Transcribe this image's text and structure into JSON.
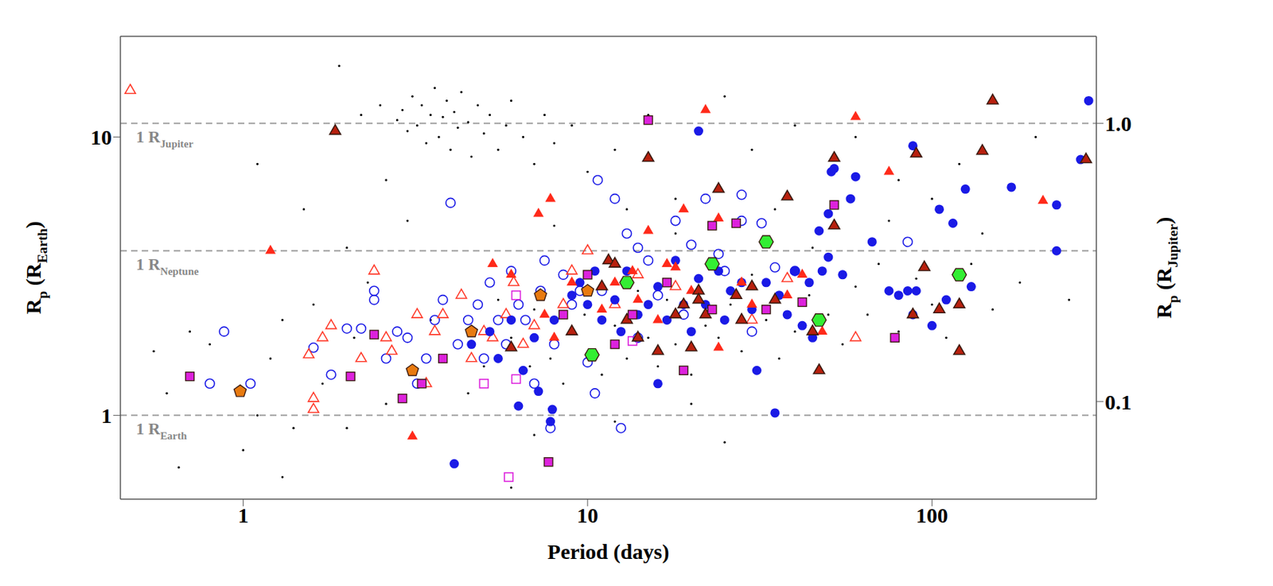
{
  "chart_data": {
    "type": "scatter",
    "log": true,
    "grid": false,
    "x_label": "Period (days)",
    "y_label": [
      "R",
      {
        "sub": "p"
      },
      " (R",
      {
        "sub": "Earth"
      },
      ")"
    ],
    "y2_label": [
      "R",
      {
        "sub": "p"
      },
      " (R",
      {
        "sub": "Jupiter"
      },
      ")"
    ],
    "xlim": [
      0.44,
      300
    ],
    "xticks": [
      1,
      10,
      100
    ],
    "ylim": [
      0.5,
      23
    ],
    "yticks": [
      1,
      10
    ],
    "y2lim": [
      0.0446,
      2.054
    ],
    "y2ticks": [
      0.1,
      {
        "value": 1,
        "label": "1.0"
      }
    ],
    "reference_lines": [
      {
        "y": 11.2,
        "label": [
          "1 R",
          {
            "sub": "Jupiter"
          }
        ],
        "line_style": "dashed"
      },
      {
        "y": 3.9,
        "label": [
          "1 R",
          {
            "sub": "Neptune"
          }
        ],
        "line_style": "dashed"
      },
      {
        "y": 1,
        "label": [
          "1 R",
          {
            "sub": "Earth"
          }
        ],
        "line_style": "dashed"
      }
    ],
    "series": [
      {
        "color": "#000000",
        "marker": "dot",
        "x": [
          0.6,
          0.65,
          0.7,
          0.8,
          1.0,
          1.1,
          1.2,
          1.3,
          1.4,
          1.5,
          1.6,
          1.7,
          1.9,
          2.0,
          2.1,
          2.2,
          2.3,
          2.5,
          2.6,
          2.8,
          2.9,
          3.0,
          3.1,
          3.2,
          3.3,
          3.4,
          3.5,
          3.5,
          3.6,
          3.7,
          3.8,
          3.9,
          4.0,
          4.1,
          4.2,
          4.3,
          4.5,
          4.6,
          4.8,
          5.0,
          5.2,
          5.5,
          5.8,
          6.0,
          6.5,
          7.0,
          7.5,
          8,
          9,
          10,
          12,
          15,
          18,
          25,
          30,
          40,
          60,
          80,
          120,
          200,
          4.5,
          5,
          5.5,
          6,
          6.8,
          7,
          7.8,
          8.5,
          9,
          9.8,
          10.5,
          11,
          12,
          13,
          14,
          15,
          16,
          17,
          18,
          20,
          22,
          24,
          26,
          28,
          30,
          33,
          36,
          40,
          44,
          50,
          55,
          60,
          65,
          70,
          80,
          90,
          100,
          110,
          130,
          150,
          180,
          250,
          7,
          12,
          20,
          1.3,
          25,
          6,
          18,
          35,
          45,
          75,
          100,
          140,
          2.0,
          0.55,
          3.0,
          2.6,
          1.1,
          8,
          13
        ],
        "values": [
          1.2,
          0.65,
          2.0,
          1.8,
          0.75,
          1.0,
          1.6,
          2.2,
          0.9,
          5.5,
          2.5,
          1.3,
          18,
          0.9,
          1.9,
          12,
          3.0,
          13,
          1.1,
          11.5,
          12.5,
          10.5,
          14,
          11,
          13,
          9.5,
          12,
          2.2,
          15,
          10,
          11.8,
          13.5,
          9,
          12.3,
          10.8,
          14.5,
          11.3,
          8.5,
          13,
          10.3,
          12,
          9,
          11,
          13.5,
          10,
          8,
          12,
          9.5,
          11,
          7.5,
          9,
          12,
          6,
          14,
          9,
          11,
          10,
          7,
          8,
          10,
          1.2,
          1.5,
          2.6,
          1.9,
          1.5,
          2.4,
          1.6,
          1.3,
          2.0,
          2.3,
          1.7,
          1.4,
          2.1,
          1.6,
          2.8,
          1.9,
          1.5,
          2.6,
          1.8,
          1.4,
          2.1,
          1.9,
          2.5,
          1.7,
          3.2,
          2.2,
          1.6,
          2.0,
          2.7,
          2.3,
          1.8,
          2.9,
          2.3,
          3.5,
          2.0,
          3.1,
          2.5,
          1.9,
          3.5,
          2.4,
          3.0,
          2.6,
          0.85,
          0.95,
          1.1,
          0.6,
          0.8,
          0.55,
          4.5,
          5.5,
          4.0,
          5.0,
          6.0,
          4.5,
          4.0,
          1.7,
          5.0,
          7.0,
          8.0,
          4.8,
          5.5
        ]
      },
      {
        "color": "#1a1ae6",
        "marker": "open_circle",
        "x": [
          0.8,
          0.88,
          1.05,
          1.6,
          1.8,
          2.0,
          2.2,
          2.4,
          2.4,
          2.6,
          2.8,
          3.0,
          3.2,
          3.4,
          3.6,
          3.8,
          4,
          4.2,
          4.5,
          4.8,
          5.0,
          5.2,
          5.5,
          5.8,
          6,
          6.3,
          6.6,
          7,
          7.3,
          7.5,
          7.8,
          8,
          8.5,
          9,
          9.5,
          10,
          10.5,
          10.7,
          11,
          12,
          12.5,
          13,
          14,
          15,
          16,
          18,
          20,
          22,
          24,
          25,
          28,
          28,
          30,
          32,
          35,
          40,
          85,
          14,
          19
        ],
        "values": [
          1.3,
          2.0,
          1.3,
          1.75,
          1.4,
          2.05,
          2.05,
          2.6,
          2.8,
          1.6,
          2.0,
          1.9,
          1.3,
          1.6,
          2.2,
          2.6,
          5.8,
          1.8,
          2.2,
          2.5,
          1.6,
          3.0,
          2.2,
          1.8,
          3.3,
          2.5,
          2.2,
          1.3,
          2.8,
          3.6,
          0.9,
          1.8,
          3.2,
          2.5,
          2.8,
          1.55,
          1.2,
          7.0,
          2.8,
          6.0,
          0.9,
          4.5,
          4.0,
          3.6,
          2.7,
          5.0,
          4.1,
          6.0,
          3.8,
          3.3,
          5.0,
          6.2,
          2.0,
          4.9,
          3.4,
          3.3,
          4.2,
          1.9,
          2.3
        ]
      },
      {
        "color": "#ff3a2a",
        "marker": "open_triangle",
        "x": [
          0.47,
          1.6,
          1.6,
          1.55,
          1.7,
          1.8,
          2.2,
          2.4,
          2.6,
          2.7,
          3.2,
          3.4,
          3.6,
          3.8,
          4.3,
          4.6,
          5,
          5.3,
          5.8,
          6.1,
          6.5,
          7,
          8.5,
          9,
          10,
          12,
          14,
          18,
          38,
          60,
          30
        ],
        "values": [
          14.7,
          1.05,
          1.15,
          1.65,
          1.9,
          2.1,
          1.6,
          3.3,
          1.9,
          1.7,
          2.3,
          1.3,
          2.0,
          2.3,
          2.7,
          1.6,
          2.0,
          1.9,
          2.3,
          3.0,
          1.8,
          2.1,
          2.5,
          3.3,
          3.9,
          2.5,
          3.2,
          2.9,
          3.1,
          1.9,
          2.2
        ]
      },
      {
        "color": "#dd22dd",
        "marker": "open_square",
        "x": [
          5,
          5.9,
          6.2,
          6.2,
          13.5
        ],
        "values": [
          1.3,
          0.6,
          1.35,
          2.7,
          1.85
        ]
      },
      {
        "color": "#1a1ae6",
        "marker": "circle",
        "x": [
          4.1,
          6.3,
          7.2,
          7.8,
          7.9,
          6.5,
          5.5,
          4.6,
          5.2,
          6,
          7,
          8,
          9,
          9.5,
          10,
          10.5,
          11,
          12,
          12.5,
          13,
          14,
          15,
          16,
          17,
          18,
          19,
          20,
          21,
          21,
          22,
          24,
          25,
          26,
          28,
          30,
          31,
          33,
          35,
          36,
          38,
          40,
          42,
          44,
          45,
          47,
          48,
          50,
          50,
          51,
          52,
          55,
          58,
          60,
          67,
          75,
          80,
          85,
          88,
          90,
          88,
          100,
          105,
          110,
          115,
          125,
          130,
          170,
          230,
          230,
          270,
          285,
          16
        ],
        "values": [
          0.67,
          1.08,
          1.22,
          0.95,
          1.05,
          1.45,
          1.6,
          1.8,
          2.0,
          2.2,
          1.9,
          2.2,
          2.7,
          3.0,
          2.5,
          3.3,
          2.2,
          2.6,
          2.0,
          3.3,
          2.3,
          2.5,
          2.9,
          2.2,
          3.6,
          2.5,
          2.0,
          3.1,
          10.5,
          2.5,
          3.3,
          2.2,
          2.8,
          3.0,
          2.4,
          1.45,
          3.0,
          1.02,
          2.7,
          2.3,
          3.3,
          2.1,
          3.0,
          1.9,
          4.6,
          3.3,
          3.7,
          5.3,
          7.5,
          7.7,
          3.2,
          6.0,
          7.2,
          4.2,
          2.8,
          2.7,
          2.8,
          2.3,
          2.8,
          9.3,
          2.1,
          5.5,
          2.6,
          4.9,
          6.5,
          2.9,
          6.6,
          3.9,
          5.7,
          8.3,
          13.5,
          1.3
        ]
      },
      {
        "color": "#ff2a1a",
        "marker": "triangle",
        "x": [
          1.2,
          3.1,
          5.3,
          6,
          7.2,
          7.8,
          7.5,
          8,
          9,
          10,
          11,
          12,
          13.5,
          14,
          15,
          17,
          18,
          19,
          20,
          22,
          24,
          28,
          30,
          38,
          42,
          48,
          60,
          75,
          210,
          24,
          16
        ],
        "values": [
          3.9,
          0.84,
          3.5,
          3.2,
          5.3,
          6.0,
          2.3,
          1.9,
          3.0,
          2.8,
          2.4,
          3.0,
          3.3,
          2.6,
          4.6,
          3.5,
          3.4,
          5.5,
          2.8,
          12.5,
          5.1,
          3.0,
          2.5,
          2.7,
          3.2,
          2.0,
          11.8,
          7.5,
          5.9,
          1.75,
          2.2
        ]
      },
      {
        "color": "#b8200e",
        "marker": "edged_triangle",
        "x": [
          1.85,
          6,
          9,
          11,
          11.5,
          12,
          13,
          14,
          15,
          16,
          18,
          19,
          20,
          21,
          21,
          22,
          24,
          27,
          28,
          30,
          35,
          38,
          45,
          47,
          52,
          52,
          90,
          95,
          88,
          105,
          120,
          120,
          140,
          150,
          280
        ],
        "values": [
          10.5,
          1.75,
          2.0,
          2.9,
          3.6,
          3.5,
          2.2,
          1.9,
          8.4,
          1.7,
          2.3,
          2.5,
          1.75,
          2.8,
          2.6,
          2.3,
          6.5,
          2.7,
          2.2,
          2.9,
          2.6,
          6.1,
          2.0,
          1.45,
          8.4,
          4.8,
          8.7,
          3.4,
          2.3,
          2.4,
          2.5,
          1.7,
          8.9,
          13.5,
          8.3
        ]
      },
      {
        "color": "#dd22dd",
        "marker": "square",
        "x": [
          0.7,
          2.05,
          2.4,
          2.9,
          3.3,
          3.8,
          7.7,
          8.5,
          10,
          12,
          13.5,
          15,
          17,
          19,
          23,
          23,
          27,
          33,
          42,
          52,
          78
        ],
        "values": [
          1.38,
          1.38,
          1.95,
          1.15,
          1.3,
          1.6,
          0.68,
          2.3,
          3.2,
          1.8,
          2.3,
          11.5,
          3.0,
          1.45,
          4.8,
          2.4,
          4.9,
          2.4,
          2.55,
          5.7,
          1.9
        ]
      },
      {
        "color": "#e87a10",
        "marker": "pentagon",
        "x": [
          0.98,
          3.1,
          4.6,
          7.3,
          10
        ],
        "values": [
          1.22,
          1.45,
          2.0,
          2.7,
          2.8
        ]
      },
      {
        "color": "#33ee33",
        "marker": "hexagon",
        "x": [
          10.3,
          13,
          23,
          33,
          47,
          120
        ],
        "values": [
          1.65,
          3.0,
          3.5,
          4.2,
          2.2,
          3.2
        ]
      }
    ]
  }
}
